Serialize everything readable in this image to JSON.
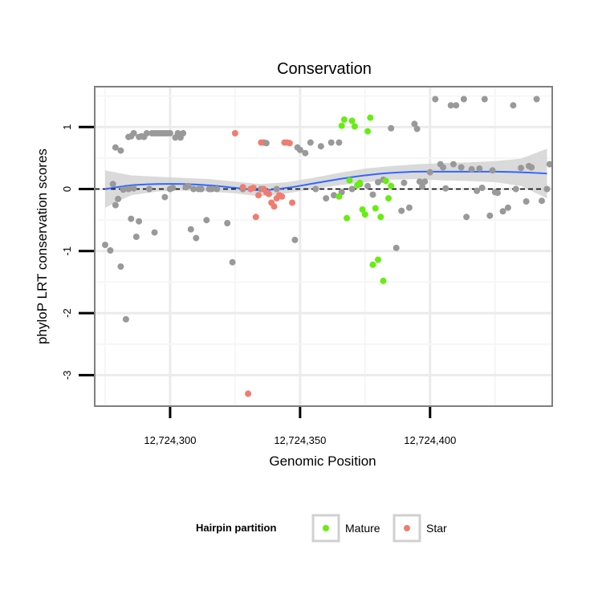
{
  "chart_data": {
    "type": "scatter",
    "title": "Conservation",
    "xlabel": "Genomic Position",
    "ylabel": "phyloP LRT conservation scores",
    "xlim": [
      12724271,
      12724447
    ],
    "ylim": [
      -3.5,
      1.65
    ],
    "x_ticks": [
      {
        "value": 12724300,
        "label": "12,724,300"
      },
      {
        "value": 12724350,
        "label": "12,724,350"
      },
      {
        "value": 12724400,
        "label": "12,724,400"
      }
    ],
    "y_ticks": [
      {
        "value": 1,
        "label": "1"
      },
      {
        "value": 0,
        "label": "0"
      },
      {
        "value": -1,
        "label": "-1"
      },
      {
        "value": -2,
        "label": "-2"
      },
      {
        "value": -3,
        "label": "-3"
      }
    ],
    "reference_line": {
      "y": 0,
      "style": "dashed"
    },
    "grid": true,
    "legend": {
      "title": "Hairpin partition",
      "position": "bottom",
      "entries": [
        {
          "name": "Mature",
          "color": "#66ee11"
        },
        {
          "name": "Star",
          "color": "#f07c70"
        }
      ]
    },
    "colors": {
      "Mature": "#66ee11",
      "Star": "#f07c70",
      "Other": "#999999",
      "smooth": "#3366ff",
      "ribbon": "#d3d3d3"
    },
    "series": [
      {
        "group": "Other",
        "x": [
          12724275,
          12724277,
          12724278,
          12724279,
          12724279,
          12724280,
          12724281,
          12724281,
          12724282,
          12724283,
          12724284,
          12724284,
          12724285,
          12724285,
          12724286,
          12724286,
          12724287,
          12724288,
          12724288,
          12724289,
          12724290,
          12724291,
          12724292,
          12724293,
          12724294,
          12724294,
          12724295,
          12724296,
          12724297,
          12724298,
          12724298,
          12724299,
          12724300,
          12724300,
          12724301,
          12724302,
          12724303,
          12724304,
          12724305,
          12724306,
          12724307,
          12724308,
          12724309,
          12724310,
          12724311,
          12724312,
          12724314,
          12724315,
          12724316,
          12724318,
          12724322,
          12724324,
          12724328,
          12724335,
          12724336,
          12724337,
          12724341,
          12724348,
          12724349,
          12724350,
          12724352,
          12724354,
          12724356,
          12724358,
          12724360,
          12724362,
          12724363,
          12724365,
          12724366,
          12724370,
          12724373,
          12724376,
          12724378,
          12724380,
          12724382,
          12724385,
          12724387,
          12724389,
          12724390,
          12724392,
          12724394,
          12724395,
          12724396,
          12724397,
          12724398,
          12724400,
          12724402,
          12724404,
          12724405,
          12724406,
          12724408,
          12724409,
          12724410,
          12724412,
          12724413,
          12724414,
          12724416,
          12724418,
          12724419,
          12724420,
          12724421,
          12724423,
          12724424,
          12724425,
          12724426,
          12724428,
          12724430,
          12724432,
          12724433,
          12724435,
          12724437,
          12724438,
          12724439,
          12724441,
          12724443,
          12724445,
          12724446
        ],
        "y": [
          -0.9,
          -0.99,
          0.08,
          -0.26,
          0.67,
          -0.16,
          0.62,
          -1.25,
          -0.01,
          -2.1,
          0.84,
          0.0,
          -0.48,
          0.85,
          0.01,
          0.9,
          -0.77,
          -0.52,
          0.84,
          0.85,
          0.84,
          0.9,
          0.0,
          0.9,
          0.9,
          -0.7,
          0.9,
          0.9,
          0.9,
          -0.13,
          0.9,
          0.9,
          0.9,
          0.0,
          0.02,
          0.83,
          0.9,
          0.83,
          0.9,
          0.03,
          0.05,
          -0.65,
          0.0,
          -0.79,
          0.0,
          0.0,
          -0.5,
          0.0,
          0.0,
          0.0,
          -0.55,
          -1.18,
          0.0,
          0.0,
          0.75,
          0.74,
          0.0,
          -0.82,
          0.67,
          0.63,
          0.58,
          0.75,
          0.0,
          0.69,
          -0.15,
          0.75,
          -0.1,
          0.75,
          -0.05,
          0.0,
          0.08,
          0.05,
          -0.09,
          0.11,
          0.15,
          0.98,
          -0.95,
          -0.35,
          0.1,
          -0.3,
          1.05,
          0.97,
          0.12,
          0.04,
          0.12,
          0.27,
          1.45,
          0.4,
          0.35,
          0.01,
          1.35,
          0.4,
          1.35,
          0.35,
          1.45,
          -0.45,
          0.32,
          -0.03,
          0.33,
          0.02,
          1.45,
          -0.43,
          0.3,
          -0.05,
          -0.06,
          -0.36,
          -0.3,
          1.35,
          0.0,
          0.34,
          -0.2,
          0.37,
          0.35,
          1.45,
          -0.19,
          0.0,
          0.4
        ]
      },
      {
        "group": "Mature",
        "x": [
          12724365,
          12724366,
          12724367,
          12724368,
          12724369,
          12724370,
          12724371,
          12724372,
          12724373,
          12724374,
          12724375,
          12724376,
          12724377,
          12724378,
          12724379,
          12724380,
          12724381,
          12724382,
          12724383,
          12724384,
          12724385
        ],
        "y": [
          -0.12,
          1.02,
          1.12,
          -0.47,
          0.14,
          1.1,
          1.01,
          0.06,
          0.1,
          -0.33,
          -0.41,
          0.93,
          1.15,
          -1.22,
          -0.31,
          -1.14,
          -0.45,
          -1.48,
          0.13,
          -0.15,
          0.05
        ]
      },
      {
        "group": "Star",
        "x": [
          12724325,
          12724328,
          12724330,
          12724331,
          12724332,
          12724333,
          12724334,
          12724335,
          12724336,
          12724337,
          12724338,
          12724339,
          12724340,
          12724341,
          12724342,
          12724343,
          12724344,
          12724345,
          12724346,
          12724347
        ],
        "y": [
          0.9,
          0.03,
          -3.3,
          0.0,
          0.02,
          -0.45,
          -0.1,
          0.75,
          0.0,
          -0.05,
          -0.08,
          -0.22,
          -0.28,
          -0.15,
          -0.1,
          -0.12,
          0.75,
          0.75,
          0.74,
          -0.22
        ]
      }
    ],
    "smooth": {
      "x": [
        12724275,
        12724285,
        12724295,
        12724305,
        12724315,
        12724325,
        12724335,
        12724345,
        12724355,
        12724365,
        12724375,
        12724385,
        12724395,
        12724405,
        12724415,
        12724425,
        12724435,
        12724445
      ],
      "y": [
        0.0,
        0.06,
        0.08,
        0.08,
        0.06,
        0.02,
        -0.02,
        0.02,
        0.09,
        0.16,
        0.22,
        0.26,
        0.28,
        0.28,
        0.28,
        0.28,
        0.27,
        0.25
      ],
      "se_low": [
        -0.3,
        -0.1,
        -0.04,
        -0.02,
        -0.04,
        -0.07,
        -0.12,
        -0.07,
        0.0,
        0.06,
        0.11,
        0.15,
        0.16,
        0.14,
        0.13,
        0.11,
        0.05,
        -0.15
      ],
      "se_high": [
        0.3,
        0.22,
        0.2,
        0.18,
        0.16,
        0.12,
        0.08,
        0.11,
        0.18,
        0.26,
        0.33,
        0.37,
        0.4,
        0.42,
        0.43,
        0.45,
        0.49,
        0.65
      ]
    }
  }
}
